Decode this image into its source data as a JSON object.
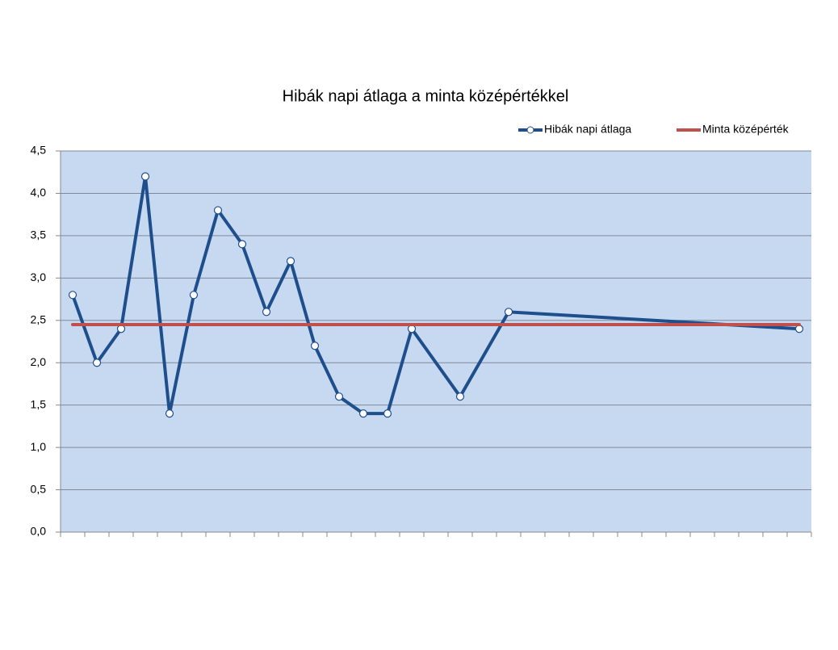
{
  "chart_data": {
    "type": "line",
    "title": "Hibák napi átlaga a minta középértékkel",
    "categories": [
      null,
      null,
      null,
      null,
      null,
      null,
      null,
      null,
      null,
      null,
      null,
      null,
      null,
      null,
      null,
      null,
      null,
      null,
      null,
      null,
      null,
      null,
      null,
      null,
      null,
      null,
      null,
      null,
      null,
      null,
      null
    ],
    "series": [
      {
        "name": "Hibák napi átlaga",
        "color": "#1f4e8c",
        "markers": true,
        "values": [
          2.8,
          2.0,
          2.4,
          4.2,
          1.4,
          2.8,
          3.8,
          3.4,
          2.6,
          3.2,
          2.2,
          1.6,
          1.4,
          1.4,
          2.4,
          null,
          1.6,
          null,
          2.6,
          null,
          null,
          null,
          null,
          null,
          null,
          null,
          null,
          null,
          null,
          null,
          2.4
        ]
      },
      {
        "name": "Minta középérték",
        "color": "#c0504d",
        "markers": false,
        "values": [
          2.45,
          2.45,
          2.45,
          2.45,
          2.45,
          2.45,
          2.45,
          2.45,
          2.45,
          2.45,
          2.45,
          2.45,
          2.45,
          2.45,
          2.45,
          2.45,
          2.45,
          2.45,
          2.45,
          2.45,
          2.45,
          2.45,
          2.45,
          2.45,
          2.45,
          2.45,
          2.45,
          2.45,
          2.45,
          2.45,
          2.45
        ]
      }
    ],
    "ylim": [
      0,
      4.5
    ],
    "yticks": [
      {
        "value": 0,
        "label": "0,0"
      },
      {
        "value": 0.5,
        "label": "0,5"
      },
      {
        "value": 1,
        "label": "1,0"
      },
      {
        "value": 1.5,
        "label": "1,5"
      },
      {
        "value": 2,
        "label": "2,0"
      },
      {
        "value": 2.5,
        "label": "2,5"
      },
      {
        "value": 3,
        "label": "3,0"
      },
      {
        "value": 3.5,
        "label": "3,5"
      },
      {
        "value": 4,
        "label": "4,0"
      },
      {
        "value": 4.5,
        "label": "4,5"
      }
    ],
    "grid": true,
    "plot_background": "#c6d9f0",
    "legend": "top-right"
  }
}
